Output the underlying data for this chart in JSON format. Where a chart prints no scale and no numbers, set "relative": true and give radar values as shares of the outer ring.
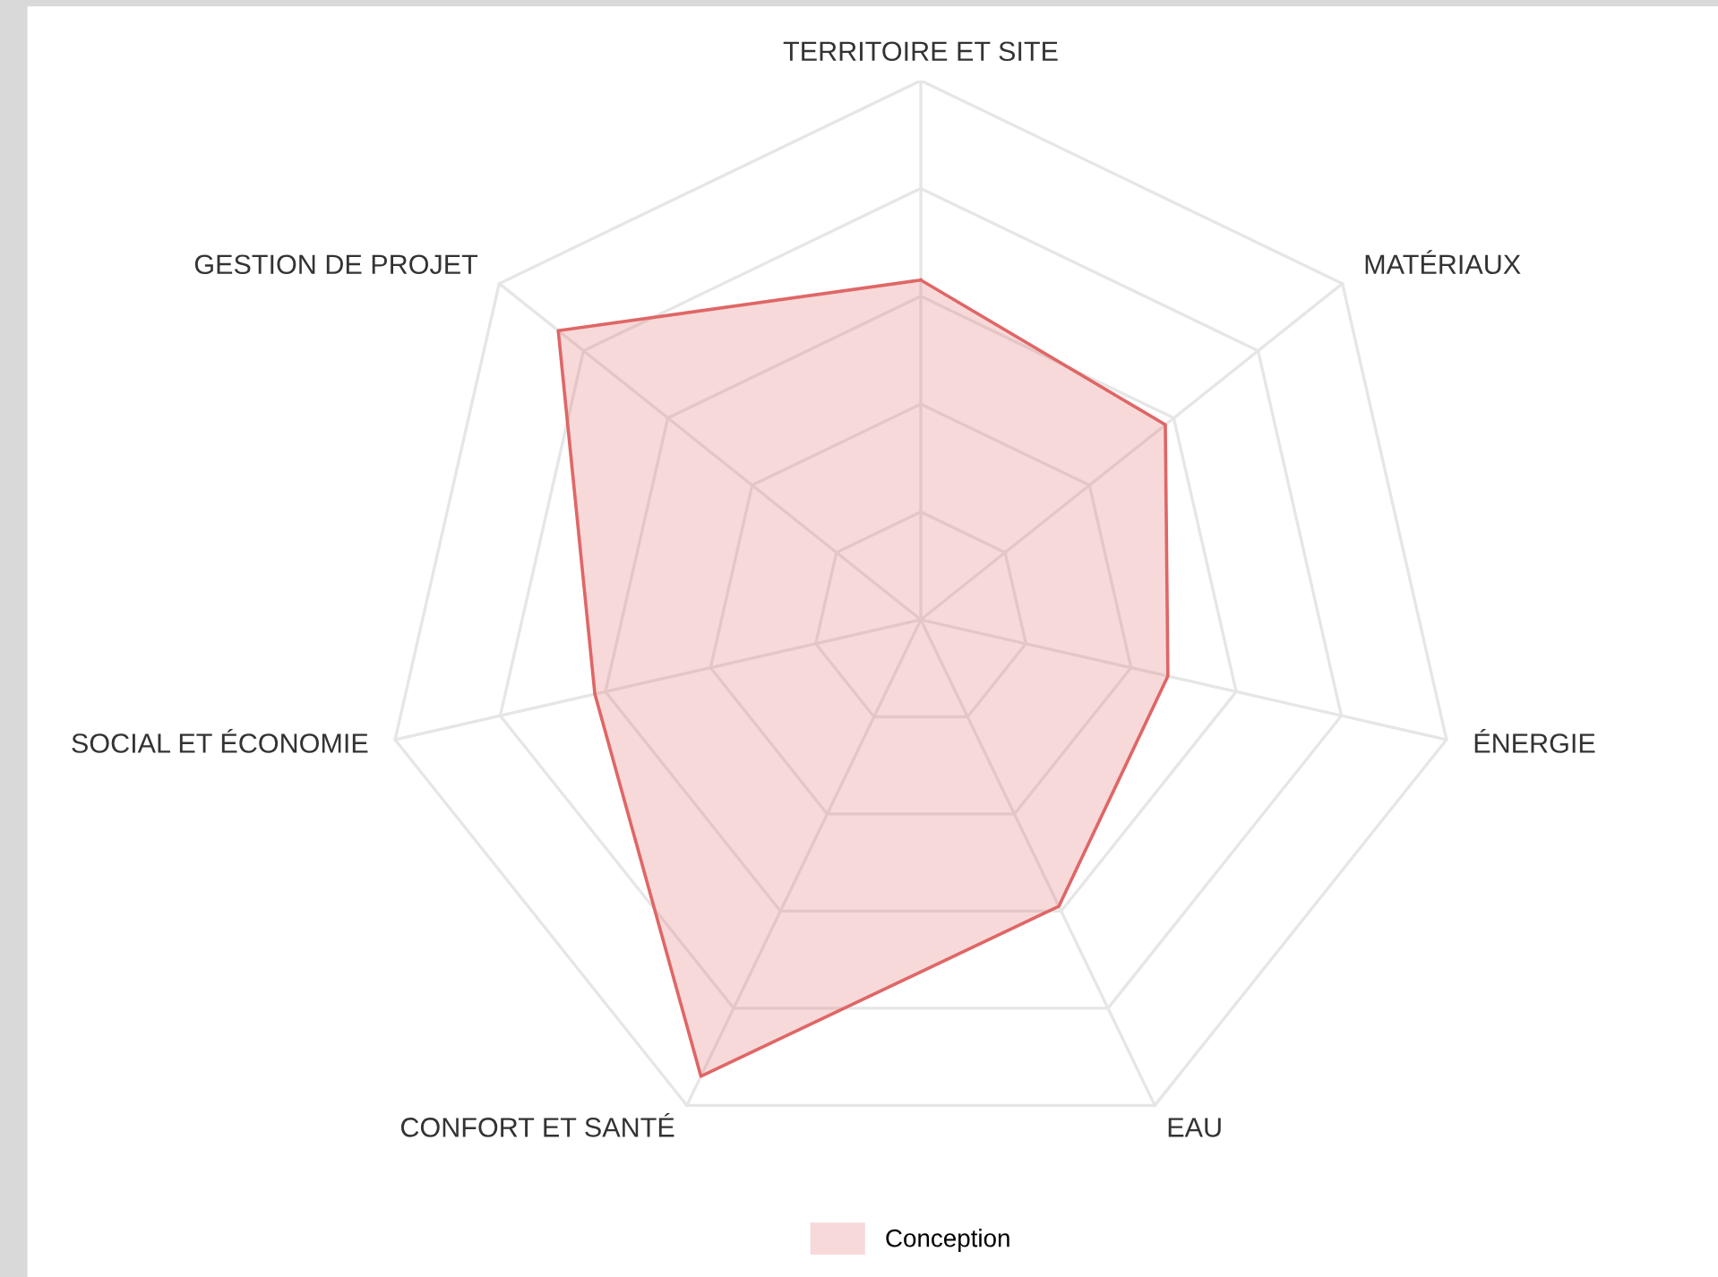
{
  "chart_data": {
    "type": "radar",
    "relative": true,
    "categories": [
      "TERRITOIRE ET SITE",
      "MATÉRIAUX",
      "ÉNERGIE",
      "EAU",
      "CONFORT ET SANTÉ",
      "SOCIAL ET ÉCONOMIE",
      "GESTION DE PROJET"
    ],
    "series": [
      {
        "name": "Conception",
        "color": "#e06666",
        "values": [
          0.63,
          0.58,
          0.47,
          0.59,
          0.94,
          0.62,
          0.86
        ]
      }
    ],
    "legend": "bottom",
    "grid": true
  }
}
